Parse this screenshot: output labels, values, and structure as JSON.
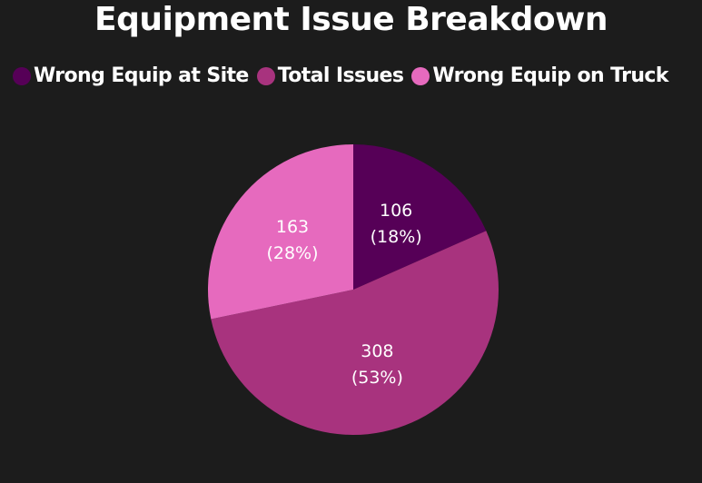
{
  "chart_data": {
    "type": "pie",
    "title": "Equipment Issue Breakdown",
    "legend_position": "top-left",
    "categories": [
      "Wrong Equip at Site",
      "Total Issues",
      "Wrong Equip on Truck"
    ],
    "values": [
      106,
      308,
      163
    ],
    "percent_labels": [
      "(18%)",
      "(53%)",
      "(28%)"
    ],
    "colors": [
      "#560057",
      "#a8337e",
      "#e66abe"
    ]
  }
}
